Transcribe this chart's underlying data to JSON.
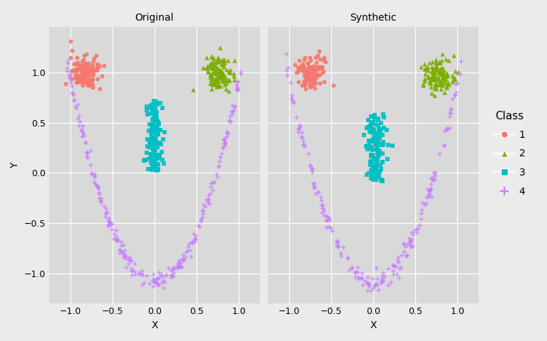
{
  "title_left": "Original",
  "title_right": "Synthetic",
  "xlabel": "X",
  "ylabel": "Y",
  "background_color": "#EBEBEB",
  "panel_bg": "#D9D9D9",
  "strip_bg": "#C8C8C8",
  "grid_color": "white",
  "classes": [
    "1",
    "2",
    "3",
    "4"
  ],
  "class_colors": [
    "#F8766D",
    "#7CAE00",
    "#00BFC4",
    "#C77CFF"
  ],
  "xlim": [
    -1.25,
    1.25
  ],
  "ylim": [
    -1.3,
    1.45
  ],
  "xticks": [
    -1.0,
    -0.5,
    0.0,
    0.5,
    1.0
  ],
  "yticks": [
    -1.0,
    -0.5,
    0.0,
    0.5,
    1.0
  ],
  "legend_title": "Class",
  "marker_size_circle": 18,
  "marker_size_triangle": 22,
  "marker_size_square": 22,
  "marker_size_plus": 16
}
